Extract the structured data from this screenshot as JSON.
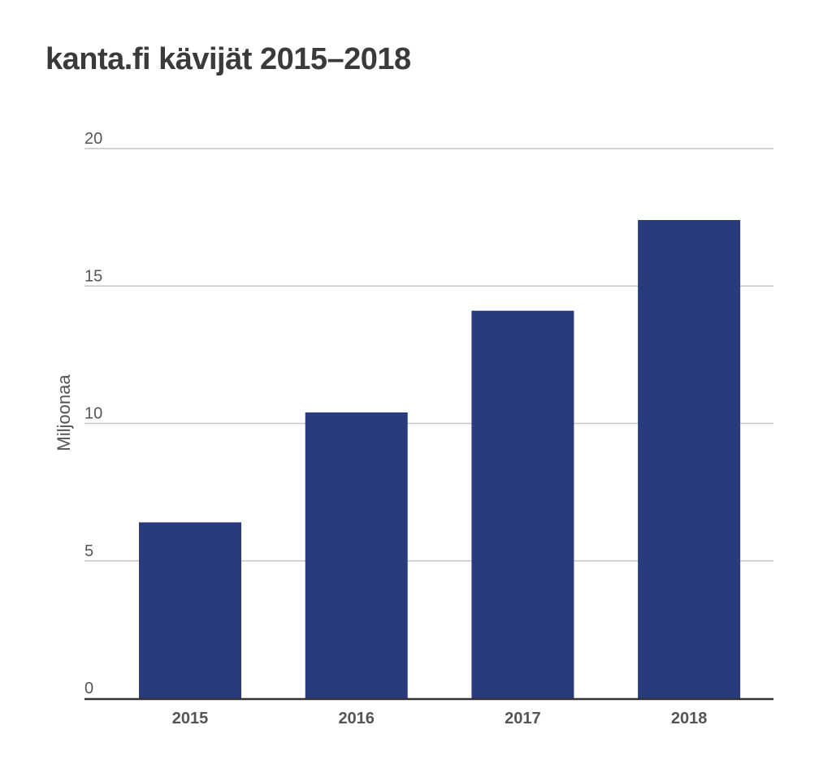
{
  "chart_data": {
    "type": "bar",
    "title": "kanta.fi kävijät 2015–2018",
    "xlabel": "",
    "ylabel": "Miljoonaa",
    "categories": [
      "2015",
      "2016",
      "2017",
      "2018"
    ],
    "values": [
      6.4,
      10.4,
      14.1,
      17.4
    ],
    "ylim": [
      0,
      20
    ],
    "yticks": [
      0,
      5,
      10,
      15,
      20
    ],
    "grid": true,
    "legend": "none",
    "bar_color": "#283b7d",
    "grid_color": "#c6c6c6",
    "axis_color": "#333333"
  }
}
